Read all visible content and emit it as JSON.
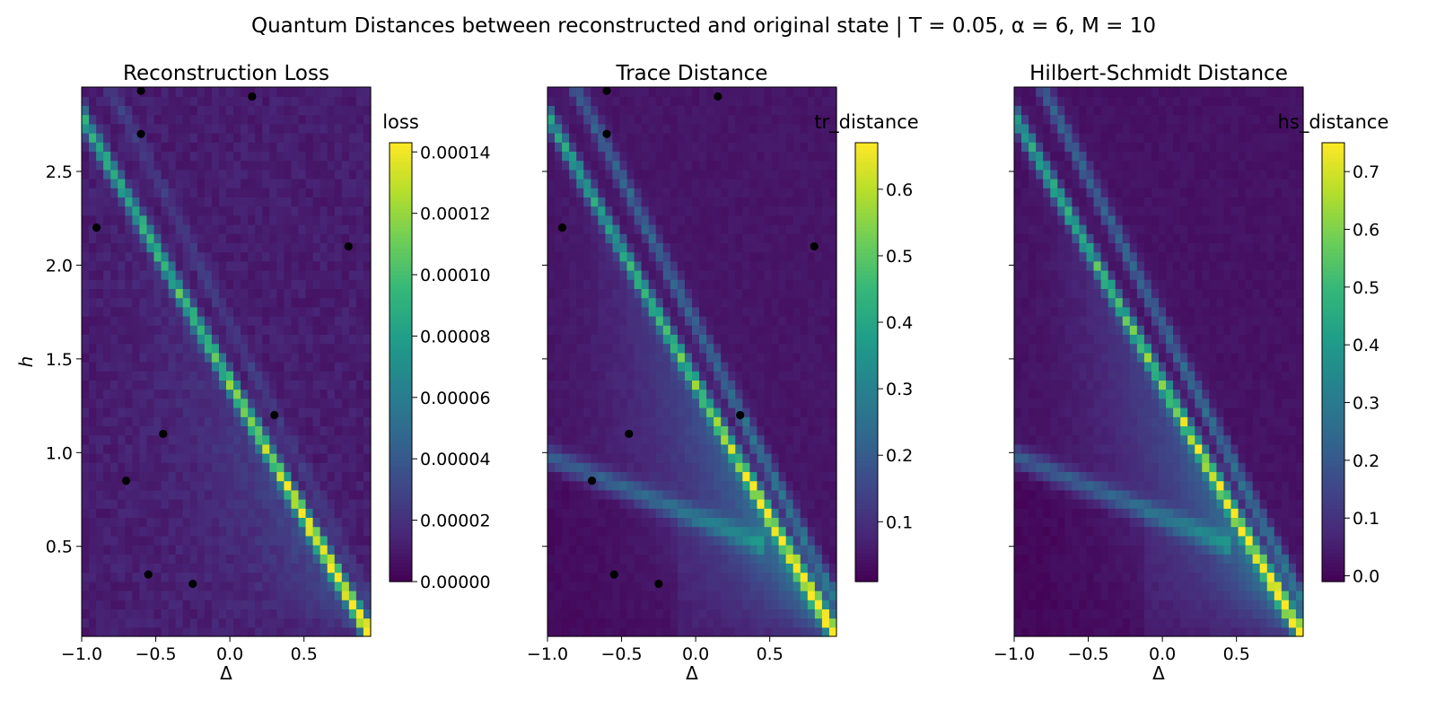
{
  "figure": {
    "suptitle": "Quantum Distances between reconstructed and original state | T = 0.05, α = 6, M = 10"
  },
  "colormap": [
    "#440154",
    "#482878",
    "#3e4989",
    "#31688e",
    "#26828e",
    "#1f9e89",
    "#35b779",
    "#6ece58",
    "#b5de2b",
    "#fde725"
  ],
  "chart_data": [
    {
      "type": "heatmap",
      "title": "Reconstruction Loss",
      "xlabel": "Δ",
      "ylabel": "h",
      "xlim": [
        -1.0,
        0.95
      ],
      "ylim": [
        0.02,
        2.95
      ],
      "xticks": [
        -1.0,
        -0.5,
        0.0,
        0.5
      ],
      "xtick_labels": [
        "−1.0",
        "−0.5",
        "0.0",
        "0.5"
      ],
      "yticks": [
        0.5,
        1.0,
        1.5,
        2.0,
        2.5
      ],
      "ytick_labels": [
        "0.5",
        "1.0",
        "1.5",
        "2.0",
        "2.5"
      ],
      "colorbar": {
        "label": "loss",
        "range": [
          0.0,
          0.000143
        ],
        "ticks": [
          0.0,
          2e-05,
          4e-05,
          6e-05,
          8e-05,
          0.0001,
          0.00012,
          0.00014
        ],
        "tick_labels": [
          "0.00000",
          "0.00002",
          "0.00004",
          "0.00006",
          "0.00008",
          "0.00010",
          "0.00012",
          "0.00014"
        ]
      },
      "field": {
        "grid": [
          40,
          60
        ],
        "base": 0.08,
        "noise": 0.06,
        "lines": [
          {
            "h_at_delta_min": 2.8,
            "h_at_delta_max": 0.03,
            "peak": 0.55,
            "peak_low": 0.95,
            "width": 0.035
          },
          {
            "h_at_delta_min": 3.25,
            "h_at_delta_max": 0.2,
            "peak": 0.1,
            "peak_low": 0.1,
            "width": 0.04
          }
        ],
        "fan": {
          "strength": 0.25
        },
        "lower": {
          "strength": 0.0
        }
      },
      "points": [
        {
          "x": -0.6,
          "y": 2.93
        },
        {
          "x": 0.15,
          "y": 2.9
        },
        {
          "x": -0.6,
          "y": 2.7
        },
        {
          "x": -0.9,
          "y": 2.2
        },
        {
          "x": 0.8,
          "y": 2.1
        },
        {
          "x": 0.3,
          "y": 1.2
        },
        {
          "x": -0.45,
          "y": 1.1
        },
        {
          "x": -0.7,
          "y": 0.85
        },
        {
          "x": -0.55,
          "y": 0.35
        },
        {
          "x": -0.25,
          "y": 0.3
        }
      ]
    },
    {
      "type": "heatmap",
      "title": "Trace Distance",
      "xlabel": "Δ",
      "ylabel": "",
      "xlim": [
        -1.0,
        0.95
      ],
      "ylim": [
        0.02,
        2.95
      ],
      "xticks": [
        -1.0,
        -0.5,
        0.0,
        0.5
      ],
      "xtick_labels": [
        "−1.0",
        "−0.5",
        "0.0",
        "0.5"
      ],
      "yticks": [
        0.5,
        1.0,
        1.5,
        2.0,
        2.5
      ],
      "ytick_labels": [],
      "colorbar": {
        "label": "tr_distance",
        "range": [
          0.01,
          0.67
        ],
        "ticks": [
          0.1,
          0.2,
          0.3,
          0.4,
          0.5,
          0.6
        ],
        "tick_labels": [
          "0.1",
          "0.2",
          "0.3",
          "0.4",
          "0.5",
          "0.6"
        ]
      },
      "field": {
        "grid": [
          40,
          60
        ],
        "base": 0.06,
        "noise": 0.03,
        "lines": [
          {
            "h_at_delta_min": 2.8,
            "h_at_delta_max": 0.03,
            "peak": 0.5,
            "peak_low": 0.9,
            "width": 0.035
          },
          {
            "h_at_delta_min": 3.25,
            "h_at_delta_max": 0.2,
            "peak": 0.25,
            "peak_low": 0.35,
            "width": 0.04
          }
        ],
        "fan": {
          "strength": 0.55
        },
        "lower": {
          "strength": 0.25,
          "h_at_delta_min": 0.98,
          "h_at_delta_max": 0.35
        }
      },
      "points": [
        {
          "x": -0.6,
          "y": 2.93
        },
        {
          "x": 0.15,
          "y": 2.9
        },
        {
          "x": -0.6,
          "y": 2.7
        },
        {
          "x": -0.9,
          "y": 2.2
        },
        {
          "x": 0.8,
          "y": 2.1
        },
        {
          "x": 0.3,
          "y": 1.2
        },
        {
          "x": -0.45,
          "y": 1.1
        },
        {
          "x": -0.7,
          "y": 0.85
        },
        {
          "x": -0.55,
          "y": 0.35
        },
        {
          "x": -0.25,
          "y": 0.3
        }
      ]
    },
    {
      "type": "heatmap",
      "title": "Hilbert-Schmidt Distance",
      "xlabel": "Δ",
      "ylabel": "",
      "xlim": [
        -1.0,
        0.95
      ],
      "ylim": [
        0.02,
        2.95
      ],
      "xticks": [
        -1.0,
        -0.5,
        0.0,
        0.5
      ],
      "xtick_labels": [
        "−1.0",
        "−0.5",
        "0.0",
        "0.5"
      ],
      "yticks": [
        0.5,
        1.0,
        1.5,
        2.0,
        2.5
      ],
      "ytick_labels": [],
      "colorbar": {
        "label": "hs_distance",
        "range": [
          -0.01,
          0.75
        ],
        "ticks": [
          0.0,
          0.1,
          0.2,
          0.3,
          0.4,
          0.5,
          0.6,
          0.7
        ],
        "tick_labels": [
          "0.0",
          "0.1",
          "0.2",
          "0.3",
          "0.4",
          "0.5",
          "0.6",
          "0.7"
        ]
      },
      "field": {
        "grid": [
          40,
          60
        ],
        "base": 0.05,
        "noise": 0.03,
        "lines": [
          {
            "h_at_delta_min": 2.8,
            "h_at_delta_max": 0.03,
            "peak": 0.55,
            "peak_low": 0.9,
            "width": 0.035
          },
          {
            "h_at_delta_min": 3.25,
            "h_at_delta_max": 0.2,
            "peak": 0.25,
            "peak_low": 0.35,
            "width": 0.04
          }
        ],
        "fan": {
          "strength": 0.55
        },
        "lower": {
          "strength": 0.25,
          "h_at_delta_min": 0.98,
          "h_at_delta_max": 0.35
        }
      },
      "points": []
    }
  ]
}
